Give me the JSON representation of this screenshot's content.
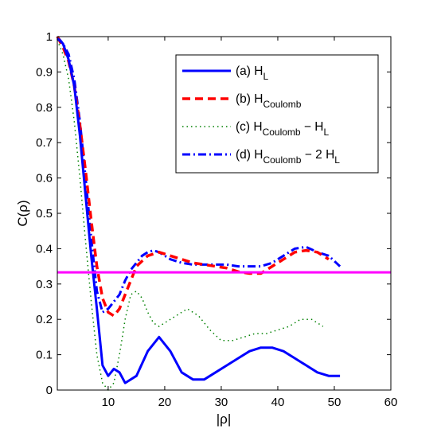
{
  "chart_data": {
    "type": "line",
    "title": "",
    "xlabel": "|ρ|",
    "ylabel": "C(ρ)",
    "xlim": [
      1,
      60
    ],
    "ylim": [
      0,
      1
    ],
    "xticks": [
      10,
      20,
      30,
      40,
      50,
      60
    ],
    "yticks": [
      0,
      0.1,
      0.2,
      0.3,
      0.4,
      0.5,
      0.6,
      0.7,
      0.8,
      0.9,
      1
    ],
    "grid": false,
    "legend_position": "top-right",
    "series": [
      {
        "name": "(a) H_L",
        "legend_parts": [
          "(a) H",
          "L",
          ""
        ],
        "color": "#0000ff",
        "style": "solid",
        "x": [
          1,
          2,
          3,
          4,
          5,
          6,
          7,
          8,
          9,
          10,
          11,
          12,
          13,
          15,
          17,
          19,
          21,
          23,
          25,
          27,
          29,
          31,
          33,
          35,
          37,
          39,
          41,
          43,
          45,
          47,
          49,
          51
        ],
        "y": [
          0.995,
          0.98,
          0.935,
          0.86,
          0.72,
          0.55,
          0.38,
          0.23,
          0.07,
          0.04,
          0.06,
          0.05,
          0.02,
          0.04,
          0.11,
          0.15,
          0.11,
          0.05,
          0.03,
          0.03,
          0.05,
          0.07,
          0.09,
          0.11,
          0.12,
          0.12,
          0.11,
          0.09,
          0.07,
          0.05,
          0.04,
          0.04
        ]
      },
      {
        "name": "(b) H_Coulomb",
        "legend_parts": [
          "(b) H",
          "Coulomb",
          ""
        ],
        "color": "#ff0000",
        "style": "dashed",
        "x": [
          1,
          2,
          3,
          4,
          5,
          6,
          7,
          8,
          9,
          10,
          11,
          12,
          13,
          14,
          15,
          17,
          19,
          21,
          23,
          25,
          27,
          29,
          31,
          33,
          35,
          37,
          39,
          41,
          43,
          45,
          47,
          49
        ],
        "y": [
          1.0,
          0.97,
          0.93,
          0.86,
          0.75,
          0.62,
          0.48,
          0.35,
          0.26,
          0.22,
          0.21,
          0.23,
          0.27,
          0.31,
          0.35,
          0.38,
          0.39,
          0.38,
          0.37,
          0.36,
          0.355,
          0.35,
          0.345,
          0.335,
          0.33,
          0.33,
          0.35,
          0.37,
          0.39,
          0.395,
          0.39,
          0.37
        ]
      },
      {
        "name": "(c) H_Coulomb − H_L",
        "legend_parts": [
          "(c) H",
          "Coulomb",
          " − H",
          "L"
        ],
        "color": "#008000",
        "style": "dotted",
        "x": [
          1,
          2,
          3,
          4,
          5,
          6,
          7,
          8,
          9,
          10,
          11,
          12,
          13,
          14,
          15,
          16,
          17,
          18,
          19,
          20,
          22,
          24,
          26,
          28,
          30,
          32,
          34,
          36,
          38,
          40,
          42,
          44,
          46,
          48
        ],
        "y": [
          0.99,
          0.95,
          0.88,
          0.76,
          0.6,
          0.42,
          0.25,
          0.1,
          0.02,
          0.0,
          0.02,
          0.1,
          0.2,
          0.27,
          0.28,
          0.26,
          0.22,
          0.19,
          0.18,
          0.19,
          0.21,
          0.23,
          0.21,
          0.17,
          0.14,
          0.14,
          0.15,
          0.16,
          0.16,
          0.17,
          0.18,
          0.2,
          0.2,
          0.18
        ]
      },
      {
        "name": "(d) H_Coulomb − 2 H_L",
        "legend_parts": [
          "(d) H",
          "Coulomb",
          " − 2 H",
          "L"
        ],
        "color": "#0000ff",
        "style": "dashdot",
        "x": [
          1,
          2,
          3,
          4,
          5,
          6,
          7,
          8,
          9,
          10,
          11,
          12,
          13,
          14,
          15,
          16,
          17,
          18,
          19,
          21,
          23,
          25,
          27,
          29,
          31,
          33,
          35,
          37,
          39,
          41,
          43,
          45,
          47,
          49,
          51
        ],
        "y": [
          1.0,
          0.98,
          0.95,
          0.88,
          0.76,
          0.6,
          0.43,
          0.28,
          0.22,
          0.23,
          0.25,
          0.27,
          0.31,
          0.34,
          0.36,
          0.38,
          0.39,
          0.395,
          0.39,
          0.37,
          0.36,
          0.355,
          0.355,
          0.355,
          0.355,
          0.35,
          0.35,
          0.35,
          0.36,
          0.38,
          0.4,
          0.405,
          0.39,
          0.38,
          0.35
        ]
      }
    ],
    "reference_line": {
      "y": 0.333,
      "color": "#ff00ff"
    }
  }
}
